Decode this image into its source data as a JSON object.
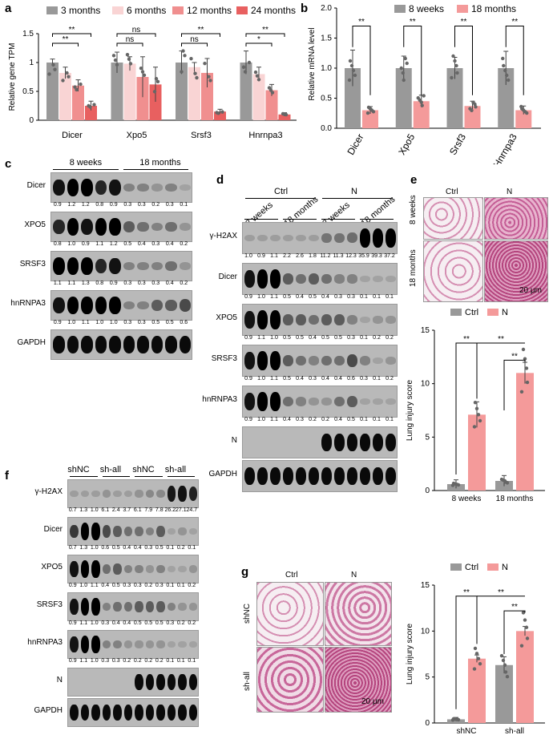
{
  "panels": {
    "a": "a",
    "b": "b",
    "c": "c",
    "d": "d",
    "e": "e",
    "f": "f",
    "g": "g"
  },
  "colors": {
    "grey": "#999999",
    "c3": "#999999",
    "c6": "#f9d4d4",
    "c12": "#f08f8f",
    "c24": "#e86060",
    "pink": "#f49a9a",
    "red": "#e34141"
  },
  "chart_data": [
    {
      "id": "a",
      "type": "bar",
      "ylabel": "Relative gene TPM",
      "ylim": [
        0,
        1.5
      ],
      "yticks": [
        "0",
        "0.5",
        "1",
        "1.5"
      ],
      "categories": [
        "Dicer",
        "Xpo5",
        "Srsf3",
        "Hnrnpa3"
      ],
      "series": [
        {
          "name": "3 months",
          "values": [
            1.0,
            1.0,
            1.0,
            1.0
          ],
          "err": [
            0.06,
            0.18,
            0.2,
            0.2
          ]
        },
        {
          "name": "6 months",
          "values": [
            0.82,
            0.98,
            0.92,
            0.8
          ],
          "err": [
            0.1,
            0.12,
            0.08,
            0.12
          ]
        },
        {
          "name": "12 months",
          "values": [
            0.6,
            0.75,
            0.82,
            0.52
          ],
          "err": [
            0.1,
            0.35,
            0.25,
            0.1
          ]
        },
        {
          "name": "24 months",
          "values": [
            0.25,
            0.62,
            0.15,
            0.1
          ],
          "err": [
            0.08,
            0.3,
            0.04,
            0.03
          ]
        }
      ],
      "annotations": [
        {
          "cat": 0,
          "from": 0,
          "to": 3,
          "text": "**"
        },
        {
          "cat": 0,
          "from": 0,
          "to": 2,
          "text": "**"
        },
        {
          "cat": 1,
          "from": 0,
          "to": 3,
          "text": "ns"
        },
        {
          "cat": 1,
          "from": 0,
          "to": 2,
          "text": "ns"
        },
        {
          "cat": 2,
          "from": 0,
          "to": 3,
          "text": "**"
        },
        {
          "cat": 2,
          "from": 0,
          "to": 2,
          "text": "ns"
        },
        {
          "cat": 3,
          "from": 0,
          "to": 3,
          "text": "**"
        },
        {
          "cat": 3,
          "from": 0,
          "to": 2,
          "text": "*"
        }
      ]
    },
    {
      "id": "b",
      "type": "bar",
      "ylabel": "Relative mRNA level",
      "ylim": [
        0,
        2.0
      ],
      "yticks": [
        "0.0",
        "0.5",
        "1.0",
        "1.5",
        "2.0"
      ],
      "categories": [
        "Dicer",
        "Xpo5",
        "Srsf3",
        "Hnrnpa3"
      ],
      "series": [
        {
          "name": "8 weeks",
          "values": [
            1.0,
            1.0,
            1.0,
            1.0
          ],
          "err": [
            0.3,
            0.2,
            0.18,
            0.28
          ]
        },
        {
          "name": "18 months",
          "values": [
            0.3,
            0.45,
            0.37,
            0.3
          ],
          "err": [
            0.06,
            0.1,
            0.08,
            0.07
          ]
        }
      ],
      "annotations": [
        "**",
        "**",
        "**",
        "**"
      ]
    },
    {
      "id": "e",
      "type": "bar",
      "ylabel": "Lung injury score",
      "ylim": [
        0,
        15
      ],
      "yticks": [
        "0",
        "5",
        "10",
        "15"
      ],
      "categories": [
        "8 weeks",
        "18 months"
      ],
      "series": [
        {
          "name": "Ctrl",
          "values": [
            0.6,
            0.9
          ],
          "err": [
            0.4,
            0.5
          ]
        },
        {
          "name": "N",
          "values": [
            7.1,
            11.0
          ],
          "err": [
            1.2,
            1.0
          ]
        }
      ],
      "annotations": [
        "**",
        "**",
        "**"
      ]
    },
    {
      "id": "g",
      "type": "bar",
      "ylabel": "Lung injury score",
      "ylim": [
        0,
        15
      ],
      "yticks": [
        "0",
        "5",
        "10",
        "15"
      ],
      "categories": [
        "shNC",
        "sh-all"
      ],
      "series": [
        {
          "name": "Ctrl",
          "values": [
            0.4,
            6.3
          ],
          "err": [
            0.2,
            0.9
          ]
        },
        {
          "name": "N",
          "values": [
            7.0,
            10.0
          ],
          "err": [
            0.4,
            0.5
          ]
        }
      ],
      "annotations": [
        "**",
        "**",
        "**"
      ]
    }
  ],
  "blot_c": {
    "groups": [
      "8 weeks",
      "18 months"
    ],
    "rows": [
      {
        "name": "Dicer",
        "values": [
          "0.9",
          "1.2",
          "1.2",
          "0.8",
          "0.9",
          "0.3",
          "0.3",
          "0.2",
          "0.3",
          "0.1"
        ]
      },
      {
        "name": "XPO5",
        "values": [
          "0.8",
          "1.0",
          "0.9",
          "1.1",
          "1.2",
          "0.5",
          "0.4",
          "0.3",
          "0.4",
          "0.2"
        ]
      },
      {
        "name": "SRSF3",
        "values": [
          "1.1",
          "1.1",
          "1.3",
          "0.8",
          "0.9",
          "0.3",
          "0.3",
          "0.3",
          "0.4",
          "0.2"
        ]
      },
      {
        "name": "hnRNPA3",
        "values": [
          "0.9",
          "1.0",
          "1.1",
          "1.0",
          "1.0",
          "0.3",
          "0.3",
          "0.5",
          "0.5",
          "0.6"
        ]
      },
      {
        "name": "GAPDH",
        "values": []
      }
    ]
  },
  "blot_d": {
    "top": [
      "Ctrl",
      "N"
    ],
    "groups": [
      "8 weeks",
      "18 months",
      "8 weeks",
      "18 months"
    ],
    "rows": [
      {
        "name": "γ-H2AX",
        "values": [
          "1.0",
          "0.9",
          "1.1",
          "2.2",
          "2.6",
          "1.8",
          "11.2",
          "11.3",
          "12.3",
          "35.9",
          "39.3",
          "37.2"
        ]
      },
      {
        "name": "Dicer",
        "values": [
          "0.9",
          "1.0",
          "1.1",
          "0.5",
          "0.4",
          "0.5",
          "0.4",
          "0.3",
          "0.3",
          "0.1",
          "0.1",
          "0.1"
        ]
      },
      {
        "name": "XPO5",
        "values": [
          "0.9",
          "1.1",
          "1.0",
          "0.5",
          "0.5",
          "0.4",
          "0.5",
          "0.5",
          "0.3",
          "0.1",
          "0.2",
          "0.2"
        ]
      },
      {
        "name": "SRSF3",
        "values": [
          "0.9",
          "1.0",
          "1.1",
          "0.5",
          "0.4",
          "0.3",
          "0.4",
          "0.4",
          "0.6",
          "0.3",
          "0.1",
          "0.2"
        ]
      },
      {
        "name": "hnRNPA3",
        "values": [
          "0.9",
          "1.0",
          "1.1",
          "0.4",
          "0.3",
          "0.2",
          "0.2",
          "0.4",
          "0.5",
          "0.1",
          "0.1",
          "0.1"
        ]
      },
      {
        "name": "N",
        "values": []
      },
      {
        "name": "GAPDH",
        "values": []
      }
    ]
  },
  "blot_f": {
    "top": [
      "Ctrl",
      "N"
    ],
    "groups": [
      "shNC",
      "sh-all",
      "shNC",
      "sh-all"
    ],
    "rows": [
      {
        "name": "γ-H2AX",
        "values": [
          "0.7",
          "1.3",
          "1.0",
          "6.1",
          "2.4",
          "3.7",
          "6.1",
          "7.9",
          "7.8",
          "26.2",
          "27.1",
          "24.7"
        ]
      },
      {
        "name": "Dicer",
        "values": [
          "0.7",
          "1.3",
          "1.0",
          "0.6",
          "0.5",
          "0.4",
          "0.4",
          "0.3",
          "0.5",
          "0.1",
          "0.2",
          "0.1"
        ]
      },
      {
        "name": "XPO5",
        "values": [
          "0.9",
          "1.0",
          "1.1",
          "0.4",
          "0.5",
          "0.3",
          "0.3",
          "0.2",
          "0.3",
          "0.1",
          "0.1",
          "0.2"
        ]
      },
      {
        "name": "SRSF3",
        "values": [
          "0.9",
          "1.1",
          "1.0",
          "0.3",
          "0.4",
          "0.4",
          "0.5",
          "0.5",
          "0.5",
          "0.3",
          "0.2",
          "0.2"
        ]
      },
      {
        "name": "hnRNPA3",
        "values": [
          "0.9",
          "1.1",
          "1.0",
          "0.3",
          "0.3",
          "0.2",
          "0.2",
          "0.2",
          "0.2",
          "0.1",
          "0.1",
          "0.1"
        ]
      },
      {
        "name": "N",
        "values": []
      },
      {
        "name": "GAPDH",
        "values": []
      }
    ]
  },
  "histo_e": {
    "cols": [
      "Ctrl",
      "N"
    ],
    "rows": [
      "8 weeks",
      "18 months"
    ],
    "scale": "20 μm"
  },
  "histo_g": {
    "cols": [
      "Ctrl",
      "N"
    ],
    "rows": [
      "shNC",
      "sh-all"
    ],
    "scale": "20 μm"
  }
}
